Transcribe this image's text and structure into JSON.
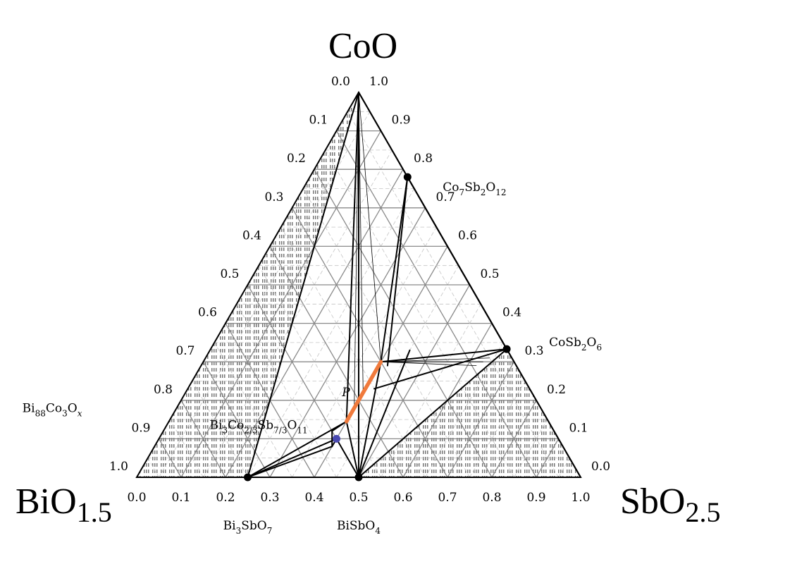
{
  "chart_data": {
    "type": "ternary",
    "title": "",
    "corners": {
      "top": {
        "base": "CoO",
        "sub": ""
      },
      "left": {
        "base": "BiO",
        "sub": "1.5"
      },
      "right": {
        "base": "SbO",
        "sub": "2.5"
      }
    },
    "axis_ticks": [
      "0.0",
      "0.1",
      "0.2",
      "0.3",
      "0.4",
      "0.5",
      "0.6",
      "0.7",
      "0.8",
      "0.9",
      "1.0"
    ],
    "grid": "0.1 solid, 0.05 dashed",
    "compounds": [
      {
        "id": "co7sb2o12",
        "parts": [
          [
            "Co",
            ""
          ],
          [
            "7",
            "sub"
          ],
          [
            "Sb",
            ""
          ],
          [
            "2",
            "sub"
          ],
          [
            "O",
            ""
          ],
          [
            "12",
            "sub"
          ]
        ],
        "coords": {
          "co": 0.78,
          "sb": 0.22
        },
        "marker": true,
        "color": "#000000"
      },
      {
        "id": "cosb2o6",
        "parts": [
          [
            "CoSb",
            ""
          ],
          [
            "2",
            "sub"
          ],
          [
            "O",
            ""
          ],
          [
            "6",
            "sub"
          ]
        ],
        "coords": {
          "co": 0.333,
          "sb": 0.667
        },
        "marker": true,
        "color": "#000000"
      },
      {
        "id": "bi3sbo7",
        "parts": [
          [
            "Bi",
            ""
          ],
          [
            "3",
            "sub"
          ],
          [
            "SbO",
            ""
          ],
          [
            "7",
            "sub"
          ]
        ],
        "coords": {
          "co": 0,
          "sb": 0.25
        },
        "marker": true,
        "color": "#000000"
      },
      {
        "id": "bisbo4",
        "parts": [
          [
            "BiSbO",
            ""
          ],
          [
            "4",
            "sub"
          ]
        ],
        "coords": {
          "co": 0,
          "sb": 0.5
        },
        "marker": true,
        "color": "#000000"
      },
      {
        "id": "bi3co",
        "parts": [
          [
            "Bi",
            ""
          ],
          [
            "3",
            "sub"
          ],
          [
            "Co",
            ""
          ],
          [
            "2/3",
            "sub"
          ],
          [
            "Sb",
            ""
          ],
          [
            "7/3",
            "sub"
          ],
          [
            "O",
            ""
          ],
          [
            "11",
            "sub"
          ]
        ],
        "coords": {
          "co": 0.1,
          "sb": 0.4
        },
        "marker": true,
        "color": "#3a3a9a"
      },
      {
        "id": "bi88co3",
        "parts": [
          [
            "Bi",
            ""
          ],
          [
            "88",
            "sub"
          ],
          [
            "Co",
            ""
          ],
          [
            "3",
            "sub"
          ],
          [
            "O",
            ""
          ],
          [
            "x",
            "subi"
          ]
        ],
        "coords": {
          "co": 0.033,
          "sb": 0
        },
        "marker": false,
        "color": "#000000"
      }
    ],
    "phase_P": {
      "label": "P",
      "from": {
        "co": 0.145,
        "sb": 0.4
      },
      "to": {
        "co": 0.3,
        "sb": 0.4
      },
      "color": "#f07a3c"
    }
  }
}
